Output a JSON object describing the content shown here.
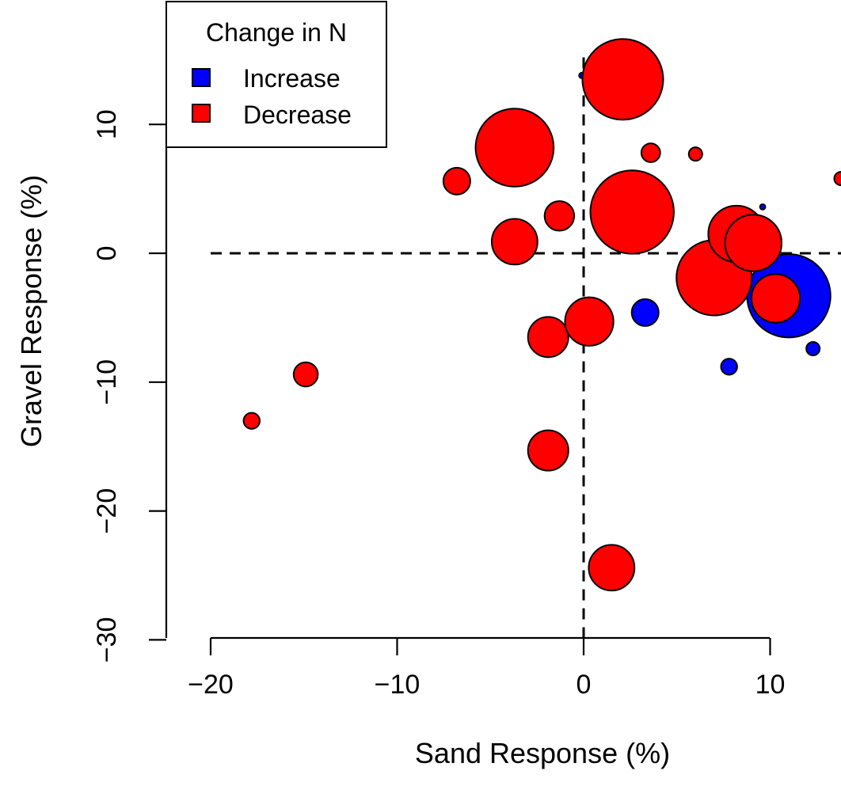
{
  "chart_data": {
    "type": "scatter",
    "xlabel": "Sand Response (%)",
    "ylabel": "Gravel Response (%)",
    "xlim": [
      -20,
      14
    ],
    "ylim": [
      -30,
      16
    ],
    "x_ticks": [
      -20,
      -10,
      0,
      10
    ],
    "y_ticks": [
      -30,
      -20,
      -10,
      0,
      10
    ],
    "x_tick_labels": [
      "−20",
      "−10",
      "0",
      "10"
    ],
    "y_tick_labels": [
      "−30",
      "−20",
      "−10",
      "0",
      "10"
    ],
    "reference_lines": {
      "x": 0,
      "y": 0,
      "style": "dashed"
    },
    "grid": false,
    "legend": {
      "title": "Change in N",
      "placement": "top-left",
      "entries": [
        {
          "label": "Increase",
          "color": "#0000ff"
        },
        {
          "label": "Decrease",
          "color": "#ff0000"
        }
      ]
    },
    "size_encoding": "relative bubble size (unlabeled)",
    "series": [
      {
        "name": "Increase",
        "color": "#0000ff",
        "points": [
          {
            "x": -0.1,
            "y": 13.8,
            "size": 0.2
          },
          {
            "x": 3.3,
            "y": -4.6,
            "size": 1.0
          },
          {
            "x": 7.8,
            "y": -8.8,
            "size": 0.6
          },
          {
            "x": 9.6,
            "y": 3.6,
            "size": 0.2
          },
          {
            "x": 11.0,
            "y": -3.3,
            "size": 3.1
          },
          {
            "x": 12.3,
            "y": -7.4,
            "size": 0.5
          }
        ]
      },
      {
        "name": "Decrease",
        "color": "#ff0000",
        "points": [
          {
            "x": -17.8,
            "y": -13.0,
            "size": 0.6
          },
          {
            "x": -14.9,
            "y": -9.4,
            "size": 0.9
          },
          {
            "x": -6.8,
            "y": 5.6,
            "size": 1.0
          },
          {
            "x": -4.3,
            "y": 8.1,
            "size": 1.3
          },
          {
            "x": -3.7,
            "y": 8.2,
            "size": 2.9
          },
          {
            "x": -3.7,
            "y": 0.9,
            "size": 1.7
          },
          {
            "x": -1.3,
            "y": 2.9,
            "size": 1.1
          },
          {
            "x": -1.9,
            "y": -6.5,
            "size": 1.5
          },
          {
            "x": -1.9,
            "y": -15.3,
            "size": 1.5
          },
          {
            "x": 0.3,
            "y": -5.3,
            "size": 1.8
          },
          {
            "x": 1.5,
            "y": -24.4,
            "size": 1.7
          },
          {
            "x": 2.1,
            "y": 13.5,
            "size": 3.0
          },
          {
            "x": 2.6,
            "y": 3.2,
            "size": 3.1
          },
          {
            "x": 3.6,
            "y": 7.8,
            "size": 0.7
          },
          {
            "x": 6.0,
            "y": 7.7,
            "size": 0.5
          },
          {
            "x": 6.6,
            "y": 0.4,
            "size": 0.5
          },
          {
            "x": 7.0,
            "y": -1.9,
            "size": 2.8
          },
          {
            "x": 8.2,
            "y": 1.5,
            "size": 2.1
          },
          {
            "x": 9.1,
            "y": 0.8,
            "size": 2.1
          },
          {
            "x": 10.3,
            "y": -3.5,
            "size": 1.8
          },
          {
            "x": 13.8,
            "y": 5.8,
            "size": 0.5
          }
        ]
      }
    ]
  }
}
